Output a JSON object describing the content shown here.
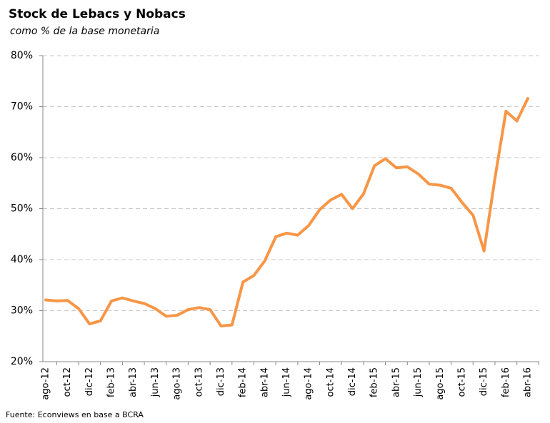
{
  "chart_data": {
    "type": "line",
    "title": "Stock de Lebacs y Nobacs",
    "subtitle": "como % de la base monetaria",
    "source": "Fuente:  Econviews en base a BCRA",
    "categories": [
      "ago-12",
      null,
      "oct-12",
      null,
      "dic-12",
      null,
      "feb-13",
      null,
      "abr-13",
      null,
      "jun-13",
      null,
      "ago-13",
      null,
      "oct-13",
      null,
      "dic-13",
      null,
      "feb-14",
      null,
      "abr-14",
      null,
      "jun-14",
      null,
      "ago-14",
      null,
      "oct-14",
      null,
      "dic-14",
      null,
      "feb-15",
      null,
      "abr-15",
      null,
      "jun-15",
      null,
      "ago-15",
      null,
      "oct-15",
      null,
      "dic-15",
      null,
      "feb-16",
      null,
      "abr-16"
    ],
    "series": [
      {
        "name": "Stock de Lebacs y Nobacs",
        "color": "#f79646",
        "values": [
          32.1,
          31.9,
          32.0,
          30.4,
          27.4,
          28.0,
          31.9,
          32.5,
          31.9,
          31.4,
          30.4,
          28.9,
          29.1,
          30.2,
          30.6,
          30.2,
          27.0,
          27.2,
          35.6,
          36.9,
          39.8,
          44.5,
          45.2,
          44.8,
          46.7,
          49.8,
          51.7,
          52.8,
          50.0,
          52.9,
          58.4,
          59.8,
          58.0,
          58.2,
          56.8,
          54.8,
          54.6,
          54.0,
          51.2,
          48.7,
          41.7,
          56.0,
          69.1,
          67.2,
          71.6
        ]
      }
    ],
    "ylim": [
      20,
      80
    ],
    "yticks": [
      {
        "value": 20,
        "label": "20%"
      },
      {
        "value": 30,
        "label": "30%"
      },
      {
        "value": 40,
        "label": "40%"
      },
      {
        "value": 50,
        "label": "50%"
      },
      {
        "value": 60,
        "label": "60%"
      },
      {
        "value": 70,
        "label": "70%"
      },
      {
        "value": 80,
        "label": "80%"
      }
    ],
    "grid": true
  }
}
